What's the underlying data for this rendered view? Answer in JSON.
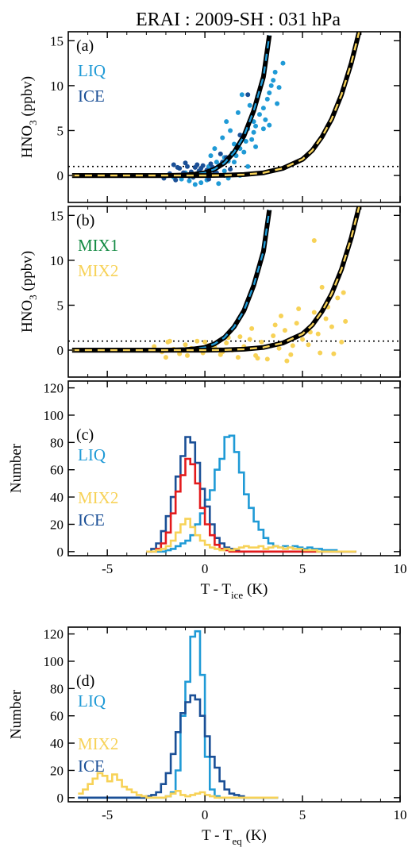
{
  "title": "ERAI : 2009-SH : 031 hPa",
  "colors": {
    "liq": "#1f9ad6",
    "ice": "#1a4f96",
    "mix1": "#138a43",
    "mix2": "#f7d257",
    "red": "#e31a1c",
    "black": "#000000"
  },
  "chart_data": [
    {
      "id": "a",
      "type": "scatter",
      "panel_label": "(a)",
      "ylabel": "HNO3 (ppbv)",
      "ylabel_main": "HNO",
      "ylabel_sub": "3",
      "ylabel_tail": " (ppbv)",
      "xlim": [
        -7,
        10
      ],
      "ylim": [
        -3,
        16
      ],
      "yticks": [
        0,
        5,
        10,
        15
      ],
      "reference_line_y": 1,
      "curves": [
        {
          "style": "black-blue-dashed",
          "x": [
            -6.8,
            -5,
            -3,
            -2,
            -1,
            -0.5,
            0,
            0.5,
            1,
            1.5,
            2,
            2.5,
            3,
            3.3
          ],
          "y": [
            0,
            0,
            0,
            0,
            0.05,
            0.15,
            0.3,
            0.7,
            1.4,
            2.6,
            4.4,
            7.2,
            11,
            15.6
          ]
        },
        {
          "style": "black-yellow-dashed",
          "x": [
            -6.8,
            -4,
            -2,
            0,
            1,
            2,
            3,
            4,
            5,
            5.5,
            6,
            6.5,
            7,
            7.5,
            7.9
          ],
          "y": [
            0,
            0,
            0,
            0,
            0.02,
            0.1,
            0.3,
            0.8,
            1.8,
            2.8,
            4.3,
            6.3,
            9,
            12.5,
            16
          ]
        }
      ],
      "series": [
        {
          "name": "LIQ",
          "color_key": "liq",
          "x": [
            -1.6,
            -1.2,
            -1.0,
            -0.8,
            -0.5,
            -0.3,
            0,
            0.2,
            0.4,
            0.6,
            0.8,
            1,
            1.2,
            1.4,
            1.5,
            1.6,
            1.8,
            2,
            2.1,
            2.2,
            2.4,
            2.5,
            2.6,
            2.8,
            3,
            3.1,
            3.2,
            3.3,
            3.4,
            3.5,
            3.6,
            3.8,
            4,
            0.5,
            0.9,
            1.3,
            1.7,
            2.3,
            2.7,
            2.9,
            3.05,
            1.1,
            1.9,
            0.3,
            -0.2,
            2.6,
            3.3,
            3.7,
            1.0,
            1.5,
            2.0,
            2.5,
            3.0,
            0.7,
            1.2,
            1.8,
            2.2,
            -0.5,
            0.1
          ],
          "y": [
            -0.2,
            -0.4,
            0.3,
            -0.6,
            0.1,
            0.5,
            0.2,
            1.0,
            0.6,
            1.5,
            1.2,
            2.0,
            1.6,
            2.5,
            3.5,
            2.2,
            3.0,
            4.5,
            3.8,
            5.2,
            4.0,
            6.0,
            5.5,
            6.8,
            7.5,
            6.2,
            8.5,
            9.2,
            10.0,
            10.6,
            11.5,
            9.8,
            12.5,
            3.0,
            4.2,
            5.0,
            7.0,
            7.8,
            8.8,
            10.2,
            11.8,
            6.0,
            9.0,
            2.2,
            -0.8,
            3.2,
            5.6,
            8.0,
            0.5,
            1.5,
            2.6,
            4.8,
            5.2,
            -0.9,
            -0.3,
            0.0,
            1.0,
            -1.0,
            -0.5
          ]
        },
        {
          "name": "ICE",
          "color_key": "ice",
          "x": [
            -2.1,
            -1.8,
            -1.5,
            -1.3,
            -1.1,
            -0.9,
            -0.7,
            -0.5,
            -0.3,
            -0.1,
            0.1,
            0.3,
            0.5,
            0.7,
            0.9,
            1.1,
            -1.6,
            -1.0,
            -0.6,
            -0.2,
            0.2,
            0.6,
            1.0,
            1.3,
            -1.4,
            -0.8,
            -0.4,
            0,
            0.4,
            0.8,
            2.2,
            1.8
          ],
          "y": [
            -0.3,
            0.2,
            -0.5,
            0.8,
            0.3,
            1.0,
            0.4,
            0.9,
            0.5,
            1.1,
            0.6,
            1.3,
            0.4,
            1.0,
            1.5,
            2.0,
            1.2,
            1.4,
            -0.2,
            0.8,
            -0.4,
            0.3,
            0.0,
            0.7,
            0.9,
            -0.1,
            1.2,
            0.3,
            0.9,
            2.4,
            9.0,
            4.5
          ]
        }
      ],
      "legend": [
        "LIQ",
        "ICE"
      ]
    },
    {
      "id": "b",
      "type": "scatter",
      "panel_label": "(b)",
      "ylabel": "HNO3 (ppbv)",
      "ylabel_main": "HNO",
      "ylabel_sub": "3",
      "ylabel_tail": " (ppbv)",
      "xlim": [
        -7,
        10
      ],
      "ylim": [
        -3,
        16
      ],
      "yticks": [
        0,
        5,
        10,
        15
      ],
      "reference_line_y": 1,
      "curves": [
        {
          "style": "black-blue-dashed",
          "x": [
            -6.8,
            -5,
            -3,
            -2,
            -1,
            -0.5,
            0,
            0.5,
            1,
            1.5,
            2,
            2.5,
            3,
            3.3
          ],
          "y": [
            0,
            0,
            0,
            0,
            0.05,
            0.15,
            0.3,
            0.7,
            1.4,
            2.6,
            4.4,
            7.2,
            11,
            15.6
          ]
        },
        {
          "style": "black-yellow-dashed",
          "x": [
            -6.8,
            -4,
            -2,
            0,
            1,
            2,
            3,
            4,
            5,
            5.5,
            6,
            6.5,
            7,
            7.5,
            7.9
          ],
          "y": [
            0,
            0,
            0,
            0,
            0.02,
            0.1,
            0.3,
            0.8,
            1.8,
            2.8,
            4.3,
            6.3,
            9,
            12.5,
            16
          ]
        }
      ],
      "series": [
        {
          "name": "MIX1",
          "color_key": "mix1",
          "x": [],
          "y": []
        },
        {
          "name": "MIX2",
          "color_key": "mix2",
          "x": [
            -2.6,
            -2.2,
            -1.9,
            -1.6,
            -1.3,
            -1.0,
            -0.7,
            -0.4,
            -0.1,
            0.2,
            0.5,
            0.8,
            1.1,
            1.4,
            1.7,
            2.0,
            2.3,
            2.6,
            2.9,
            3.2,
            3.5,
            3.8,
            4.1,
            4.4,
            4.7,
            5.0,
            5.3,
            5.6,
            5.9,
            6.2,
            6.5,
            6.8,
            7.1,
            -1.8,
            -0.9,
            0.0,
            0.9,
            1.8,
            2.7,
            3.6,
            4.5,
            5.4,
            6.3,
            7.2,
            5.6,
            6.0,
            4.8,
            3.9,
            2.4,
            1.2,
            -0.3,
            -2.0,
            5.8,
            6.6,
            7.0,
            4.2,
            3.0
          ],
          "y": [
            0.4,
            -0.2,
            0.9,
            0.1,
            -0.4,
            0.6,
            0.2,
            1.0,
            -0.3,
            0.5,
            0.3,
            -0.5,
            0.8,
            0.0,
            -0.8,
            0.4,
            1.2,
            -0.6,
            0.9,
            -1.0,
            1.6,
            0.2,
            2.2,
            -0.5,
            3.0,
            1.2,
            0.6,
            4.2,
            -0.3,
            3.5,
            2.6,
            5.8,
            6.4,
            1.0,
            -0.6,
            0.9,
            -0.2,
            1.5,
            -0.9,
            2.8,
            0.5,
            2.0,
            4.8,
            3.2,
            12.2,
            7.0,
            4.6,
            3.8,
            2.4,
            1.4,
            0.0,
            -0.8,
            1.8,
            -0.4,
            0.9,
            -1.2,
            0.3
          ]
        }
      ],
      "legend": [
        "MIX1",
        "MIX2"
      ]
    },
    {
      "id": "c",
      "type": "histogram",
      "panel_label": "(c)",
      "ylabel": "Number",
      "xlabel": "T - Tice (K)",
      "xlabel_main": "T - T",
      "xlabel_sub": "ice",
      "xlabel_tail": " (K)",
      "xlim": [
        -7,
        10
      ],
      "ylim": [
        -3,
        125
      ],
      "yticks": [
        0,
        20,
        40,
        60,
        80,
        100,
        120
      ],
      "xticks": [
        -5,
        0,
        5,
        10
      ],
      "bin_start": -3.0,
      "bin_width": 0.25,
      "series": [
        {
          "name": "LIQ",
          "color_key": "liq",
          "values": [
            0,
            0,
            0,
            0,
            1,
            2,
            4,
            6,
            8,
            12,
            20,
            28,
            38,
            45,
            60,
            68,
            84,
            85,
            73,
            58,
            42,
            32,
            22,
            16,
            10,
            6,
            4,
            3,
            4,
            3,
            4,
            3,
            2,
            3,
            2,
            2,
            1,
            1,
            1,
            0,
            0,
            0,
            0
          ]
        },
        {
          "name": "ICE",
          "color_key": "ice",
          "values": [
            0,
            2,
            6,
            15,
            26,
            40,
            55,
            70,
            84,
            80,
            65,
            46,
            33,
            20,
            10,
            6,
            3,
            2,
            1,
            0,
            0,
            0,
            0,
            0,
            0,
            0,
            0,
            0,
            0,
            0,
            0,
            0,
            0,
            0,
            0,
            0,
            0,
            0,
            0,
            0,
            0,
            0,
            0
          ]
        },
        {
          "name": "",
          "color_key": "red",
          "values": [
            0,
            0,
            2,
            6,
            14,
            28,
            44,
            56,
            68,
            64,
            50,
            32,
            20,
            12,
            5,
            2,
            1,
            0,
            0,
            0,
            0,
            0,
            0,
            0,
            0,
            0,
            0,
            0,
            0,
            0,
            0,
            0,
            0,
            0,
            0,
            0,
            0,
            0,
            0,
            0,
            0,
            0,
            0
          ]
        },
        {
          "name": "MIX2",
          "color_key": "mix2",
          "values": [
            0,
            0,
            1,
            2,
            4,
            8,
            14,
            20,
            24,
            18,
            12,
            8,
            5,
            3,
            2,
            1,
            2,
            1,
            2,
            3,
            4,
            3,
            3,
            4,
            2,
            3,
            4,
            3,
            2,
            3,
            2,
            2,
            1,
            1,
            1,
            0,
            0,
            0,
            0,
            0,
            0,
            0,
            0
          ]
        }
      ],
      "legend": [
        "LIQ",
        "MIX2",
        "ICE"
      ]
    },
    {
      "id": "d",
      "type": "histogram",
      "panel_label": "(d)",
      "ylabel": "Number",
      "xlabel": "T - Teq (K)",
      "xlabel_main": "T - T",
      "xlabel_sub": "eq",
      "xlabel_tail": " (K)",
      "xlim": [
        -7,
        10
      ],
      "ylim": [
        -3,
        125
      ],
      "yticks": [
        0,
        20,
        40,
        60,
        80,
        100,
        120
      ],
      "xticks": [
        -5,
        0,
        5,
        10
      ],
      "bin_start": -6.5,
      "bin_width": 0.25,
      "series": [
        {
          "name": "LIQ",
          "color_key": "liq",
          "values": [
            0,
            0,
            0,
            0,
            0,
            0,
            0,
            0,
            0,
            0,
            0,
            0,
            0,
            0,
            0,
            0,
            0,
            0,
            1,
            4,
            20,
            60,
            85,
            118,
            122,
            90,
            30,
            6,
            1,
            0,
            0,
            0,
            0,
            0,
            0,
            0,
            0,
            0,
            0,
            0,
            0
          ]
        },
        {
          "name": "ICE",
          "color_key": "ice",
          "values": [
            0,
            0,
            0,
            0,
            0,
            0,
            0,
            0,
            0,
            0,
            0,
            0,
            0,
            0,
            1,
            2,
            4,
            10,
            18,
            32,
            48,
            62,
            70,
            75,
            72,
            60,
            45,
            30,
            22,
            12,
            6,
            3,
            2,
            1,
            0,
            0,
            0,
            0,
            0,
            0,
            0
          ]
        },
        {
          "name": "MIX2",
          "color_key": "mix2",
          "values": [
            3,
            6,
            10,
            14,
            18,
            16,
            12,
            17,
            13,
            8,
            6,
            4,
            2,
            1,
            0,
            0,
            0,
            0,
            1,
            3,
            5,
            2,
            1,
            2,
            3,
            4,
            2,
            1,
            0,
            0,
            0,
            0,
            0,
            0,
            0,
            0,
            0,
            0,
            0,
            0,
            0
          ]
        }
      ],
      "legend": [
        "LIQ",
        "MIX2",
        "ICE"
      ]
    }
  ]
}
